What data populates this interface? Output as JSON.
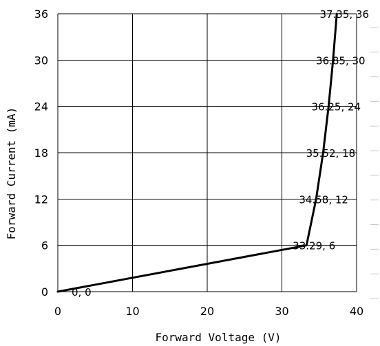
{
  "chart_data": {
    "type": "line",
    "xlabel": "Forward Voltage (V)",
    "ylabel": "Forward Current (mA)",
    "xlim": [
      0,
      40
    ],
    "ylim": [
      0,
      36
    ],
    "xticks": [
      0,
      10,
      20,
      30,
      40
    ],
    "yticks": [
      0,
      6,
      12,
      18,
      24,
      30,
      36
    ],
    "grid": true,
    "series": [
      {
        "x": [
          0,
          33.29,
          34.58,
          35.52,
          36.25,
          36.85,
          37.35
        ],
        "y": [
          0,
          6,
          12,
          18,
          24,
          30,
          36
        ],
        "color": "#000000"
      }
    ],
    "data_labels": [
      "0, 0",
      "33.29, 6",
      "34.58, 12",
      "35.52, 18",
      "36.25, 24",
      "36.85, 30",
      "37.35, 36"
    ]
  }
}
